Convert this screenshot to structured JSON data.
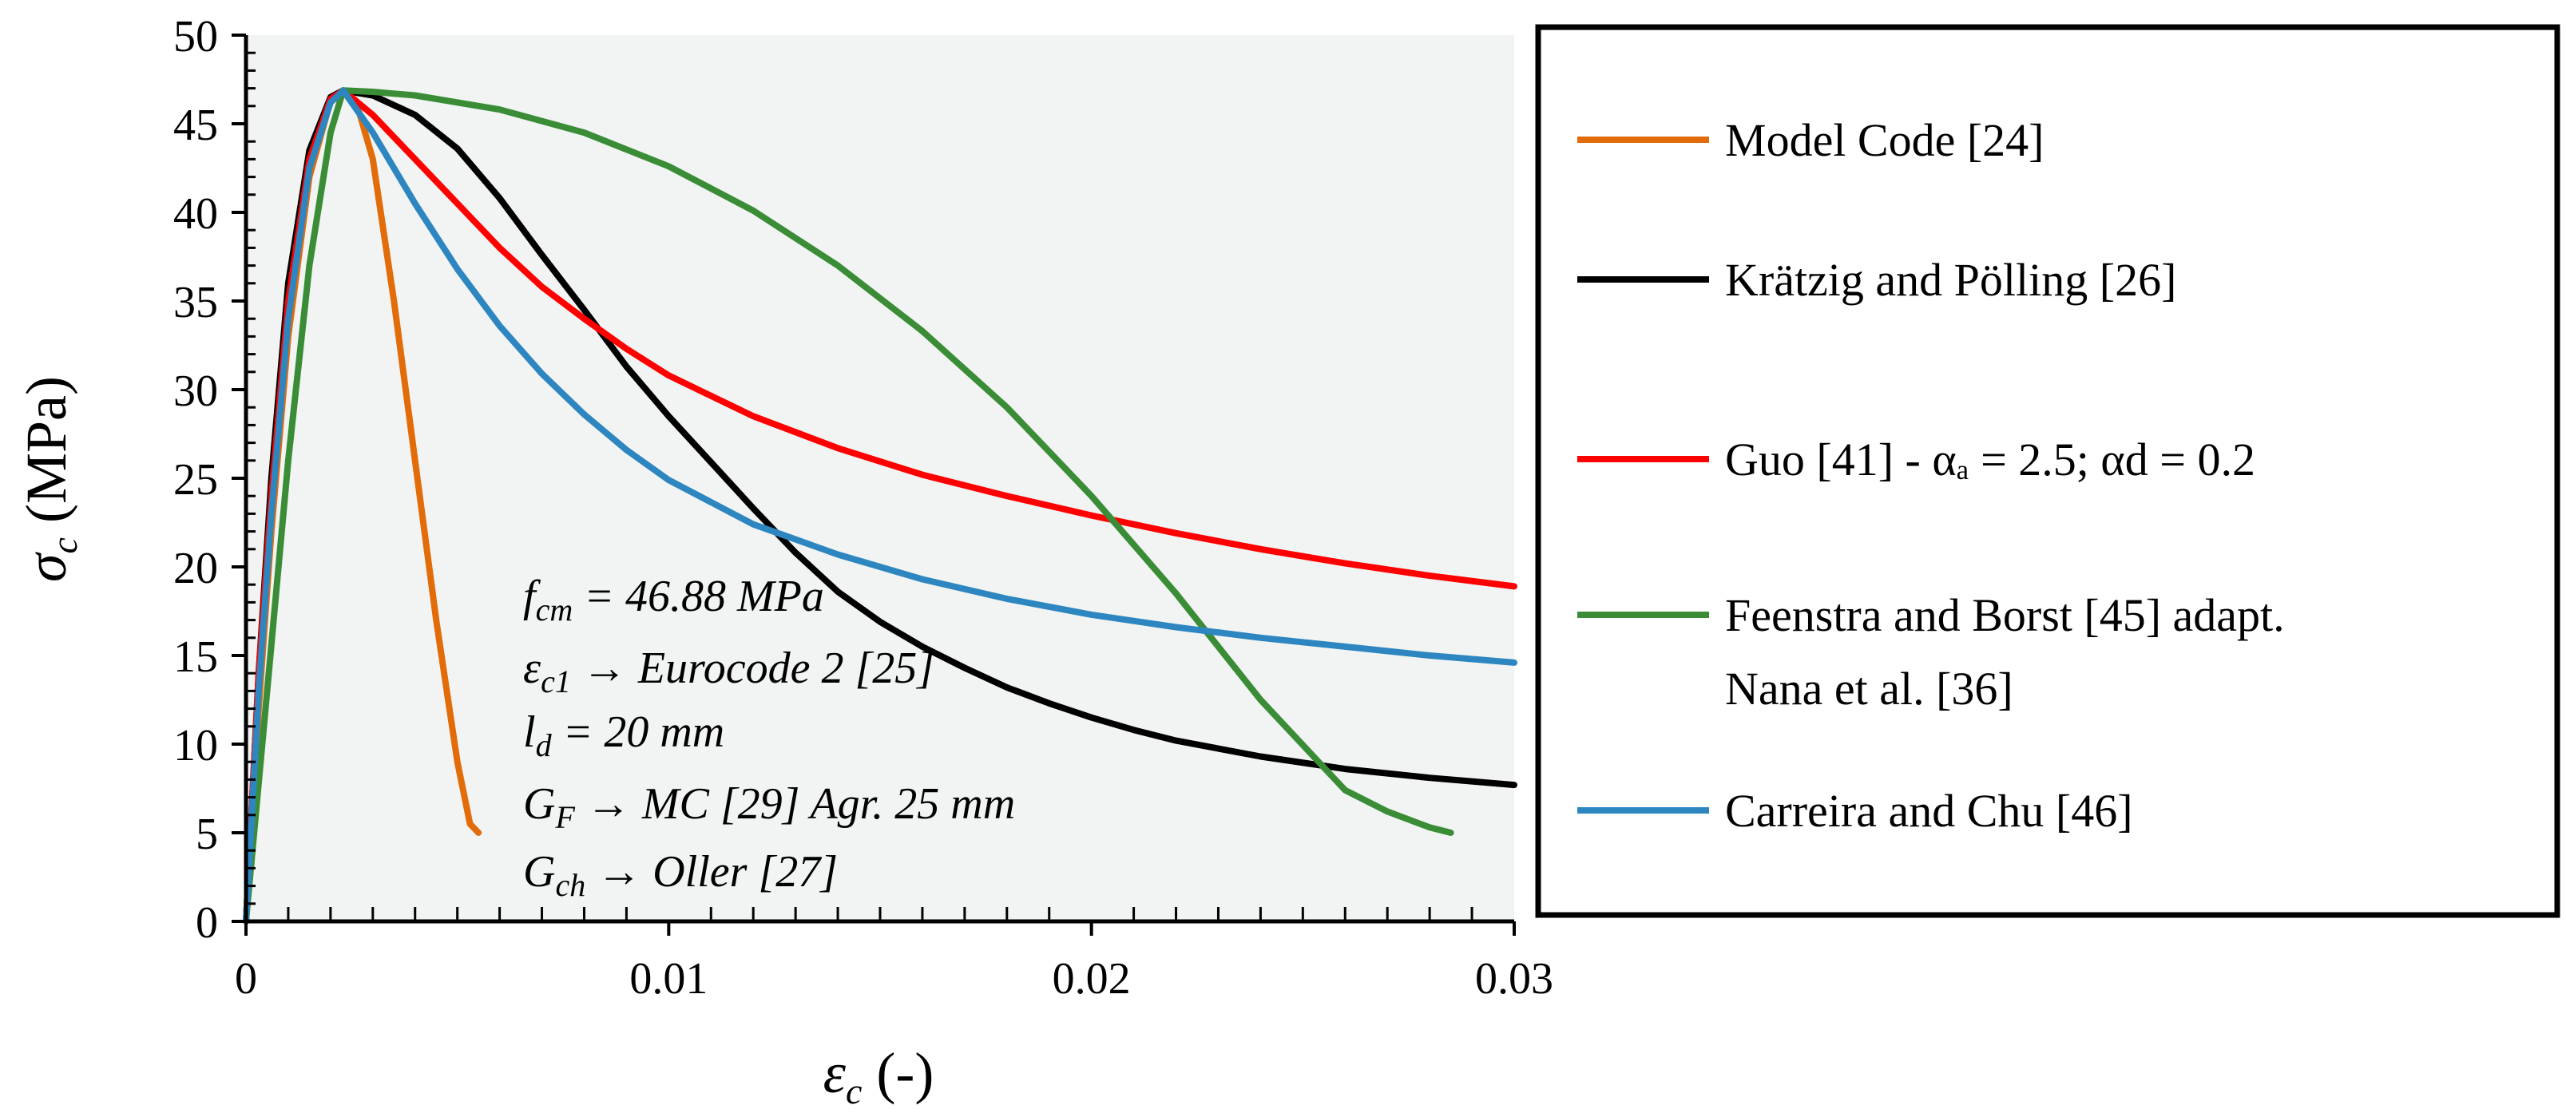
{
  "chart_data": {
    "type": "line",
    "xlim": [
      0,
      0.03
    ],
    "ylim": [
      0,
      50
    ],
    "x_ticks": [
      "0",
      "0.01",
      "0.02",
      "0.03"
    ],
    "y_ticks": [
      "0",
      "5",
      "10",
      "15",
      "20",
      "25",
      "30",
      "35",
      "40",
      "45",
      "50"
    ],
    "x_minor_step": 0.001,
    "xlabel": {
      "symbol": "ε",
      "sub": "c",
      "rest": " (-)"
    },
    "ylabel": {
      "symbol": "σ",
      "sub": "c",
      "rest": " (MPa)"
    },
    "plot_background": "#f1f4f2",
    "annotations": {
      "l1": {
        "main": "f",
        "sub": "cm",
        "rest": " = 46.88 MPa"
      },
      "l2": {
        "main": "ε",
        "sub": "c1",
        "rest": " → Eurocode 2 [25]"
      },
      "l3": {
        "main": "l",
        "sub": "d",
        "rest": "  = 20 mm"
      },
      "l4": {
        "main": "G",
        "sub": "F",
        "rest": " → MC [29] Agr. 25 mm"
      },
      "l5": {
        "main": "G",
        "sub": "ch",
        "rest": " → Oller [27]"
      }
    },
    "series": [
      {
        "name": "Model Code [24]",
        "color": "#e36c0a",
        "x": [
          0,
          0.0003,
          0.0006,
          0.001,
          0.0015,
          0.002,
          0.0023,
          0.0026,
          0.003,
          0.0035,
          0.004,
          0.0045,
          0.005,
          0.0053,
          0.0055
        ],
        "y": [
          0,
          12,
          22,
          33,
          42,
          46.3,
          46.88,
          46.3,
          43,
          35,
          26,
          17,
          9,
          5.5,
          5
        ]
      },
      {
        "name": "Krätzig and Pölling [26]",
        "color": "#000000",
        "x": [
          0,
          0.0003,
          0.0006,
          0.001,
          0.0015,
          0.002,
          0.0023,
          0.003,
          0.004,
          0.005,
          0.006,
          0.007,
          0.008,
          0.009,
          0.01,
          0.011,
          0.012,
          0.013,
          0.014,
          0.015,
          0.016,
          0.017,
          0.018,
          0.019,
          0.02,
          0.021,
          0.022,
          0.024,
          0.026,
          0.028,
          0.03
        ],
        "y": [
          0,
          14,
          25,
          36,
          43.5,
          46.5,
          46.88,
          46.6,
          45.5,
          43.6,
          40.8,
          37.6,
          34.5,
          31.3,
          28.5,
          25.9,
          23.3,
          20.8,
          18.6,
          16.9,
          15.5,
          14.3,
          13.2,
          12.3,
          11.5,
          10.8,
          10.2,
          9.3,
          8.6,
          8.1,
          7.7
        ]
      },
      {
        "name": "Guo [41]  - αₐ = 2.5;  αd = 0.2",
        "color": "#ff0000",
        "x": [
          0,
          0.0003,
          0.0006,
          0.001,
          0.0015,
          0.002,
          0.0023,
          0.003,
          0.004,
          0.005,
          0.006,
          0.007,
          0.008,
          0.009,
          0.01,
          0.012,
          0.014,
          0.016,
          0.018,
          0.02,
          0.022,
          0.024,
          0.026,
          0.028,
          0.03
        ],
        "y": [
          0,
          14,
          24,
          35,
          43,
          46.4,
          46.88,
          45.5,
          43,
          40.5,
          38,
          35.8,
          34,
          32.3,
          30.8,
          28.5,
          26.7,
          25.2,
          24,
          22.9,
          21.9,
          21,
          20.2,
          19.5,
          18.9
        ]
      },
      {
        "name": "Feenstra and Borst [45] adapt.",
        "name2": "Nana et al. [36]",
        "color": "#3a8d36",
        "x": [
          0,
          0.0005,
          0.001,
          0.0015,
          0.002,
          0.0023,
          0.003,
          0.004,
          0.006,
          0.008,
          0.01,
          0.012,
          0.014,
          0.016,
          0.018,
          0.02,
          0.022,
          0.024,
          0.026,
          0.027,
          0.028,
          0.0285
        ],
        "y": [
          0,
          13,
          26,
          37,
          44.5,
          46.88,
          46.8,
          46.6,
          45.8,
          44.5,
          42.6,
          40.1,
          37,
          33.3,
          29,
          24,
          18.5,
          12.5,
          7.4,
          6.2,
          5.3,
          5
        ]
      },
      {
        "name": "Carreira and Chu [46]",
        "color": "#2e86c1",
        "x": [
          0,
          0.0003,
          0.0006,
          0.001,
          0.0015,
          0.002,
          0.0023,
          0.003,
          0.004,
          0.005,
          0.006,
          0.007,
          0.008,
          0.009,
          0.01,
          0.012,
          0.014,
          0.016,
          0.018,
          0.02,
          0.022,
          0.024,
          0.026,
          0.028,
          0.03
        ],
        "y": [
          0,
          13,
          23,
          34,
          42.5,
          46.2,
          46.88,
          44.5,
          40.5,
          36.8,
          33.6,
          30.9,
          28.6,
          26.6,
          24.9,
          22.4,
          20.7,
          19.3,
          18.2,
          17.3,
          16.6,
          16,
          15.5,
          15,
          14.6
        ]
      }
    ]
  }
}
